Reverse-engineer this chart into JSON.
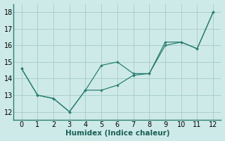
{
  "line1_x": [
    0,
    1,
    2,
    3,
    4,
    5,
    6,
    7,
    8,
    9,
    10,
    11,
    12
  ],
  "line1_y": [
    14.6,
    13.0,
    12.8,
    12.0,
    13.3,
    13.3,
    13.6,
    14.2,
    14.3,
    16.2,
    16.2,
    15.8,
    18.0
  ],
  "line2_x": [
    0,
    1,
    2,
    3,
    4,
    5,
    6,
    7,
    8,
    9,
    10,
    11,
    12
  ],
  "line2_y": [
    14.6,
    13.0,
    12.8,
    12.0,
    13.3,
    14.8,
    15.0,
    14.3,
    14.3,
    16.0,
    16.2,
    15.8,
    18.0
  ],
  "line_color": "#2a7f72",
  "bg_color": "#ceeae8",
  "grid_color": "#aacfcc",
  "xlabel": "Humidex (Indice chaleur)",
  "ylim": [
    11.5,
    18.5
  ],
  "xlim": [
    -0.5,
    12.5
  ],
  "yticks": [
    12,
    13,
    14,
    15,
    16,
    17,
    18
  ],
  "xticks": [
    0,
    1,
    2,
    3,
    4,
    5,
    6,
    7,
    8,
    9,
    10,
    11,
    12
  ],
  "xlabel_fontsize": 7.5,
  "tick_fontsize": 7
}
